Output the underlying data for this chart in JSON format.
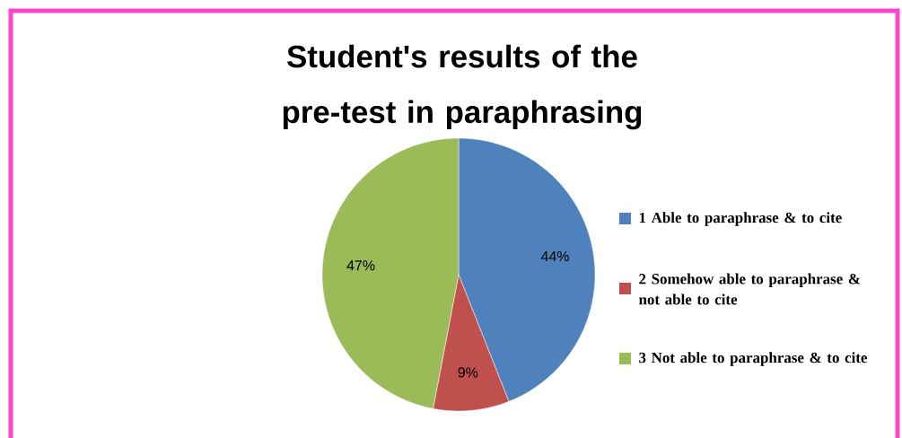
{
  "chart_data": {
    "type": "pie",
    "title": "Student's results of the pre-test in paraphrasing",
    "categories": [
      "1 Able to paraphrase & to cite",
      "2 Somehow able to paraphrase & not able to cite",
      "3 Not able to paraphrase & to cite"
    ],
    "values": [
      44,
      9,
      47
    ],
    "value_labels": [
      "44%",
      "9%",
      "47%"
    ],
    "colors": [
      "#4f81bd",
      "#c0504d",
      "#9bbb59"
    ],
    "legend": "right"
  }
}
